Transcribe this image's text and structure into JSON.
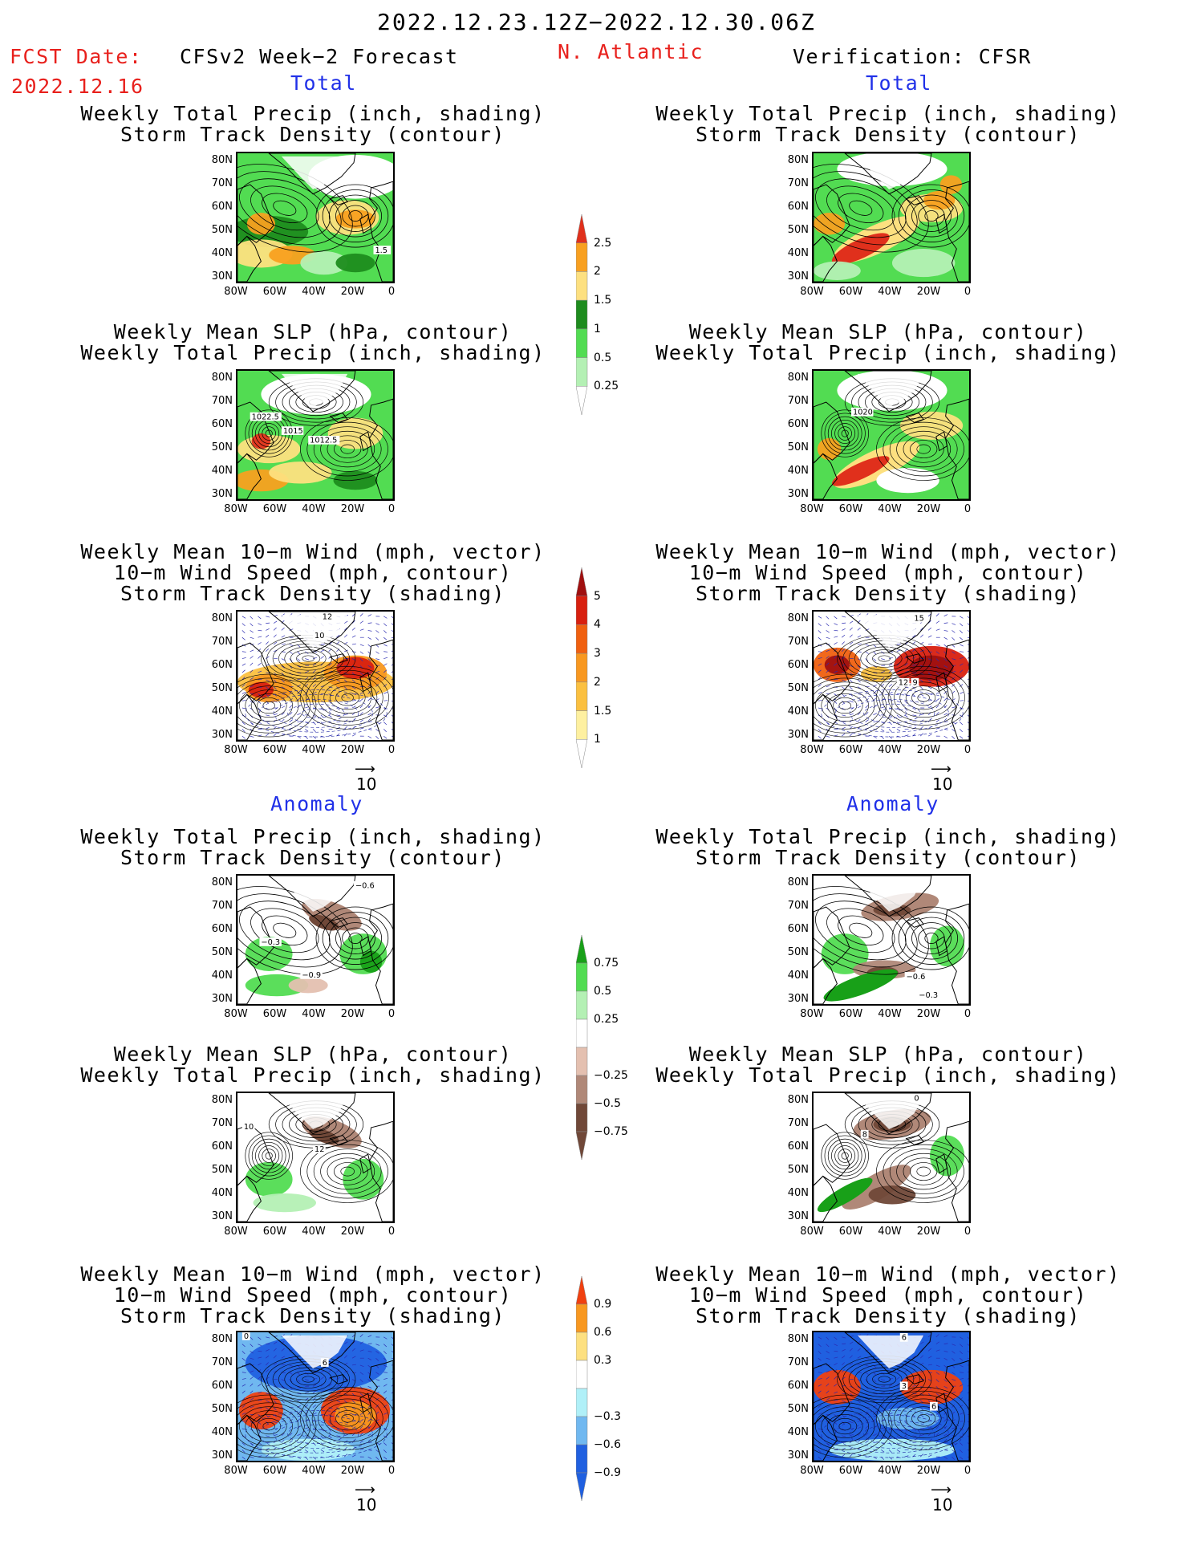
{
  "header": {
    "period": "2022.12.23.12Z−2022.12.30.06Z",
    "fcst_label": "FCST Date:",
    "fcst_date": "2022.12.16",
    "model": "CFSv2 Week−2 Forecast",
    "region": "N. Atlantic",
    "verification": "Verification: CFSR"
  },
  "sections": {
    "total": "Total",
    "anomaly": "Anomaly"
  },
  "panel_titles": {
    "precip_storm": [
      "Weekly Total Precip (inch, shading)",
      "Storm Track Density (contour)"
    ],
    "slp_precip": [
      "Weekly Mean SLP (hPa, contour)",
      "Weekly Total Precip (inch, shading)"
    ],
    "wind_storm": [
      "Weekly Mean 10−m Wind (mph, vector)",
      "10−m Wind Speed (mph, contour)",
      "Storm Track Density (shading)"
    ]
  },
  "axes": {
    "lat_labels": [
      "80N",
      "70N",
      "60N",
      "50N",
      "40N",
      "30N"
    ],
    "lon_labels": [
      "80W",
      "60W",
      "40W",
      "20W",
      "0"
    ]
  },
  "vector_ref": "10",
  "colorbars": {
    "precip_total": {
      "labels": [
        "2.5",
        "2",
        "1.5",
        "1",
        "0.5",
        "0.25"
      ],
      "colors": [
        "#e0301c",
        "#f8a020",
        "#fde080",
        "#1e8c1e",
        "#52dc52",
        "#b4f0b4"
      ]
    },
    "storm_total": {
      "labels": [
        "5",
        "4",
        "3",
        "2",
        "1.5",
        "1"
      ],
      "colors": [
        "#a01010",
        "#d82010",
        "#f06010",
        "#f89820",
        "#fbc040",
        "#fef0a0"
      ]
    },
    "precip_anom": {
      "labels": [
        "0.75",
        "0.5",
        "0.25",
        "−0.25",
        "−0.5",
        "−0.75"
      ],
      "colors": [
        "#18a018",
        "#52dc52",
        "#b4f0b4",
        "#ffffff",
        "#e4c0b0",
        "#b08878",
        "#704838"
      ]
    },
    "storm_anom": {
      "labels": [
        "0.9",
        "0.6",
        "0.3",
        "−0.3",
        "−0.6",
        "−0.9"
      ],
      "colors": [
        "#f04010",
        "#f89820",
        "#fde080",
        "#ffffff",
        "#b0f0f8",
        "#70b8f0",
        "#2060e0"
      ]
    }
  },
  "contour_labels": {
    "fcst_total_precip": [
      "1.5"
    ],
    "fcst_total_slp": [
      "1022.5",
      "1015",
      "1012.5"
    ],
    "fcst_total_wind": [
      "12",
      "10"
    ],
    "cfsr_total_slp": [
      "1020"
    ],
    "cfsr_total_wind": [
      "15",
      "12",
      "9"
    ],
    "fcst_anom_precip": [
      "−0.6",
      "−0.3",
      "−0.9"
    ],
    "cfsr_anom_precip": [
      "−0.6",
      "−0.3"
    ],
    "fcst_anom_slp": [
      "10",
      "12"
    ],
    "cfsr_anom_slp": [
      "0",
      "8"
    ],
    "fcst_anom_wind": [
      "6",
      "0"
    ],
    "cfsr_anom_wind": [
      "6",
      "3",
      "6"
    ]
  }
}
